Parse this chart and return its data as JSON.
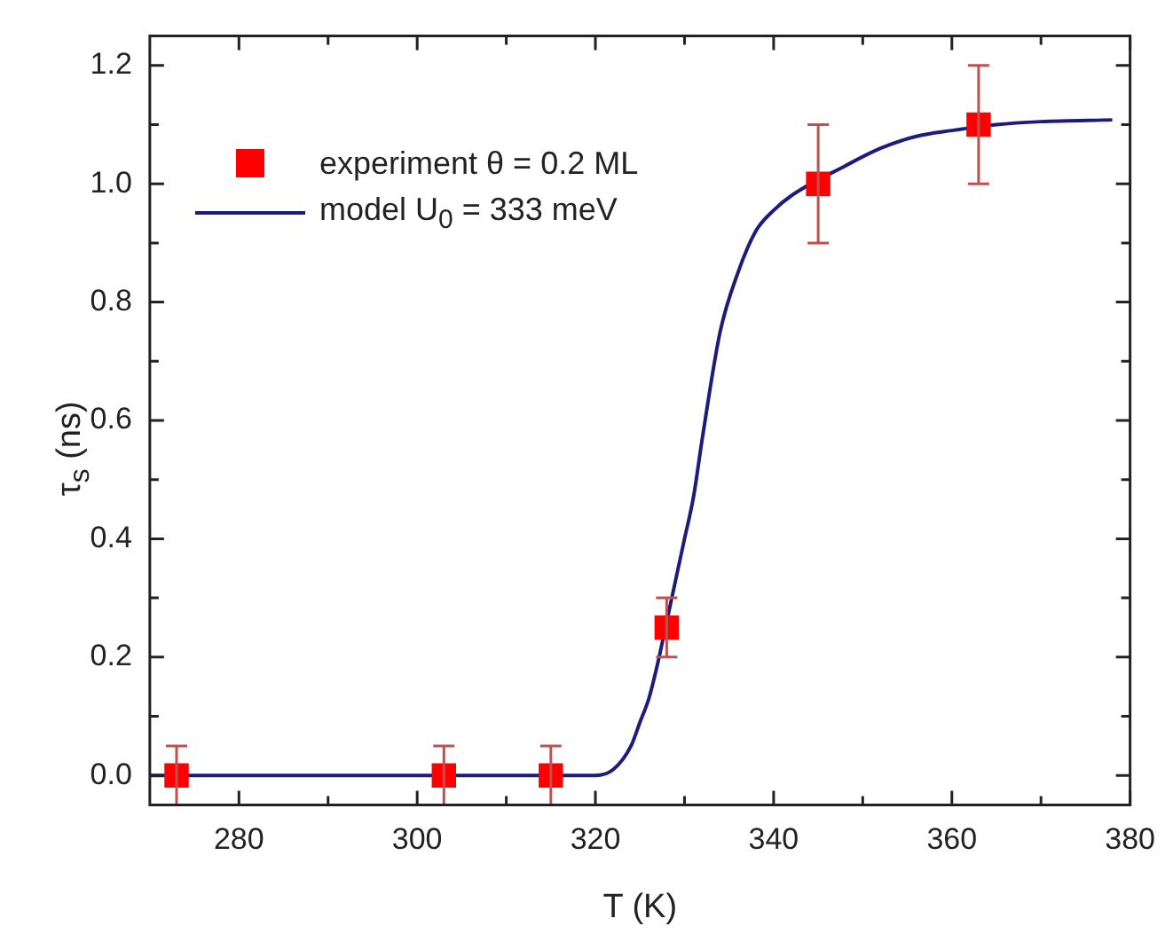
{
  "chart_data": {
    "type": "scatter",
    "xlabel": "T (K)",
    "ylabel": "τ$_{s}$ (ns)",
    "xlim": [
      270,
      380
    ],
    "xticks": [
      280,
      300,
      320,
      340,
      360,
      380
    ],
    "ylim": [
      -0.05,
      1.25
    ],
    "yticks": [
      {
        "value": 0,
        "label": "0.0"
      },
      0.2,
      0.4,
      0.6,
      0.8,
      {
        "value": 1,
        "label": "1.0"
      },
      1.2
    ],
    "legend": "top left",
    "grid": false,
    "series": [
      {
        "name": "experiment θ = 0.2 ML",
        "marker": "square",
        "color": "#ff0000",
        "x": [
          273,
          303,
          315,
          328,
          345,
          363
        ],
        "values": [
          0,
          0,
          0,
          0.25,
          1.0,
          1.1
        ],
        "errors": [
          0.05,
          0.05,
          0.05,
          0.05,
          0.1,
          0.1
        ]
      },
      {
        "name": "model U$_{0}$ = 333 meV",
        "type": "line",
        "marker": "none",
        "color": "#1c1c7c",
        "x": [
          270,
          300,
          318,
          320,
          322,
          324,
          325,
          326,
          327,
          328,
          329,
          330,
          331,
          332,
          334,
          336,
          338,
          340,
          342,
          348,
          352,
          356,
          360,
          365,
          370,
          378
        ],
        "values": [
          0,
          0,
          0,
          0,
          0.01,
          0.05,
          0.09,
          0.13,
          0.19,
          0.26,
          0.33,
          0.4,
          0.47,
          0.57,
          0.75,
          0.85,
          0.92,
          0.955,
          0.98,
          1.03,
          1.06,
          1.08,
          1.09,
          1.1,
          1.105,
          1.108
        ]
      }
    ]
  }
}
